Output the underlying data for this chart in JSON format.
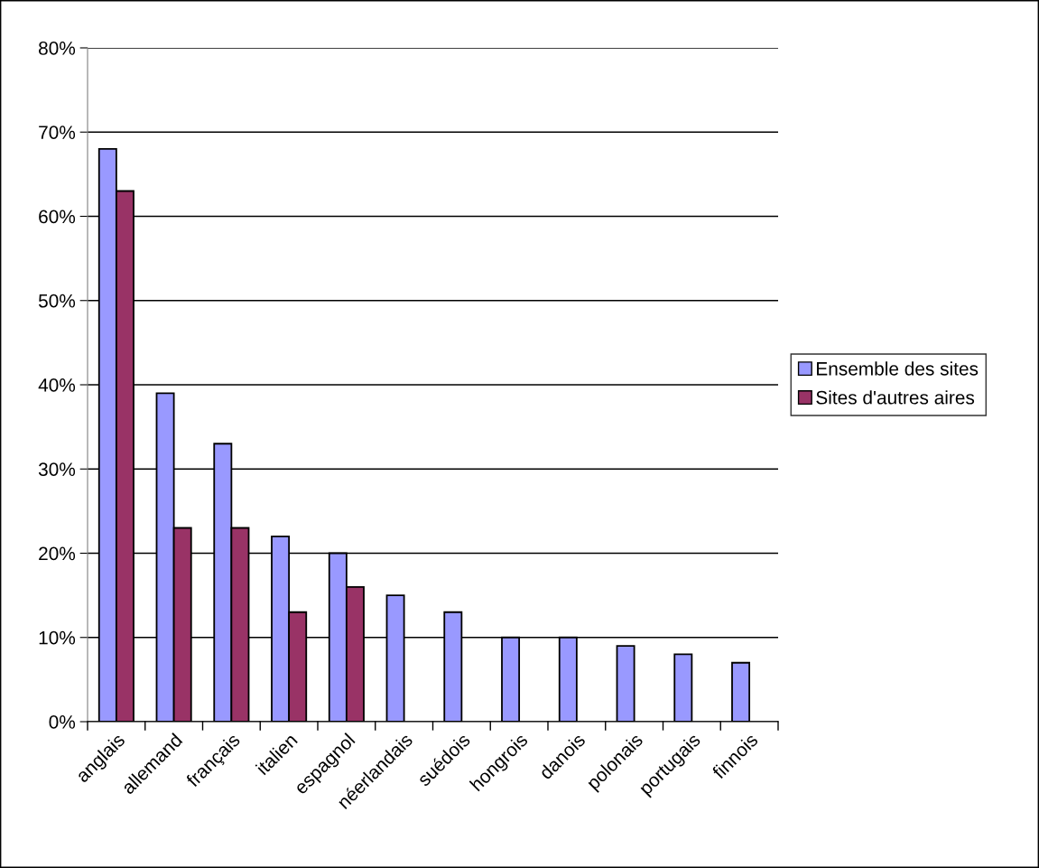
{
  "chart_data": {
    "type": "bar",
    "categories": [
      "anglais",
      "allemand",
      "français",
      "italien",
      "espagnol",
      "néerlandais",
      "suédois",
      "hongrois",
      "danois",
      "polonais",
      "portugais",
      "finnois"
    ],
    "series": [
      {
        "name": "Ensemble des sites",
        "color": "#9999ff",
        "values": [
          68,
          39,
          33,
          22,
          20,
          15,
          13,
          10,
          10,
          9,
          8,
          7
        ]
      },
      {
        "name": "Sites d'autres aires",
        "color": "#993366",
        "values": [
          63,
          23,
          23,
          13,
          16,
          null,
          null,
          null,
          null,
          null,
          null,
          null
        ]
      }
    ],
    "ylim": [
      0,
      80
    ],
    "yticks": [
      {
        "value": 0,
        "label": "0%"
      },
      {
        "value": 10,
        "label": "10%"
      },
      {
        "value": 20,
        "label": "20%"
      },
      {
        "value": 30,
        "label": "30%"
      },
      {
        "value": 40,
        "label": "40%"
      },
      {
        "value": 50,
        "label": "50%"
      },
      {
        "value": 60,
        "label": "60%"
      },
      {
        "value": 70,
        "label": "70%"
      },
      {
        "value": 80,
        "label": "80%"
      }
    ],
    "grid": "y",
    "legend": "right"
  }
}
